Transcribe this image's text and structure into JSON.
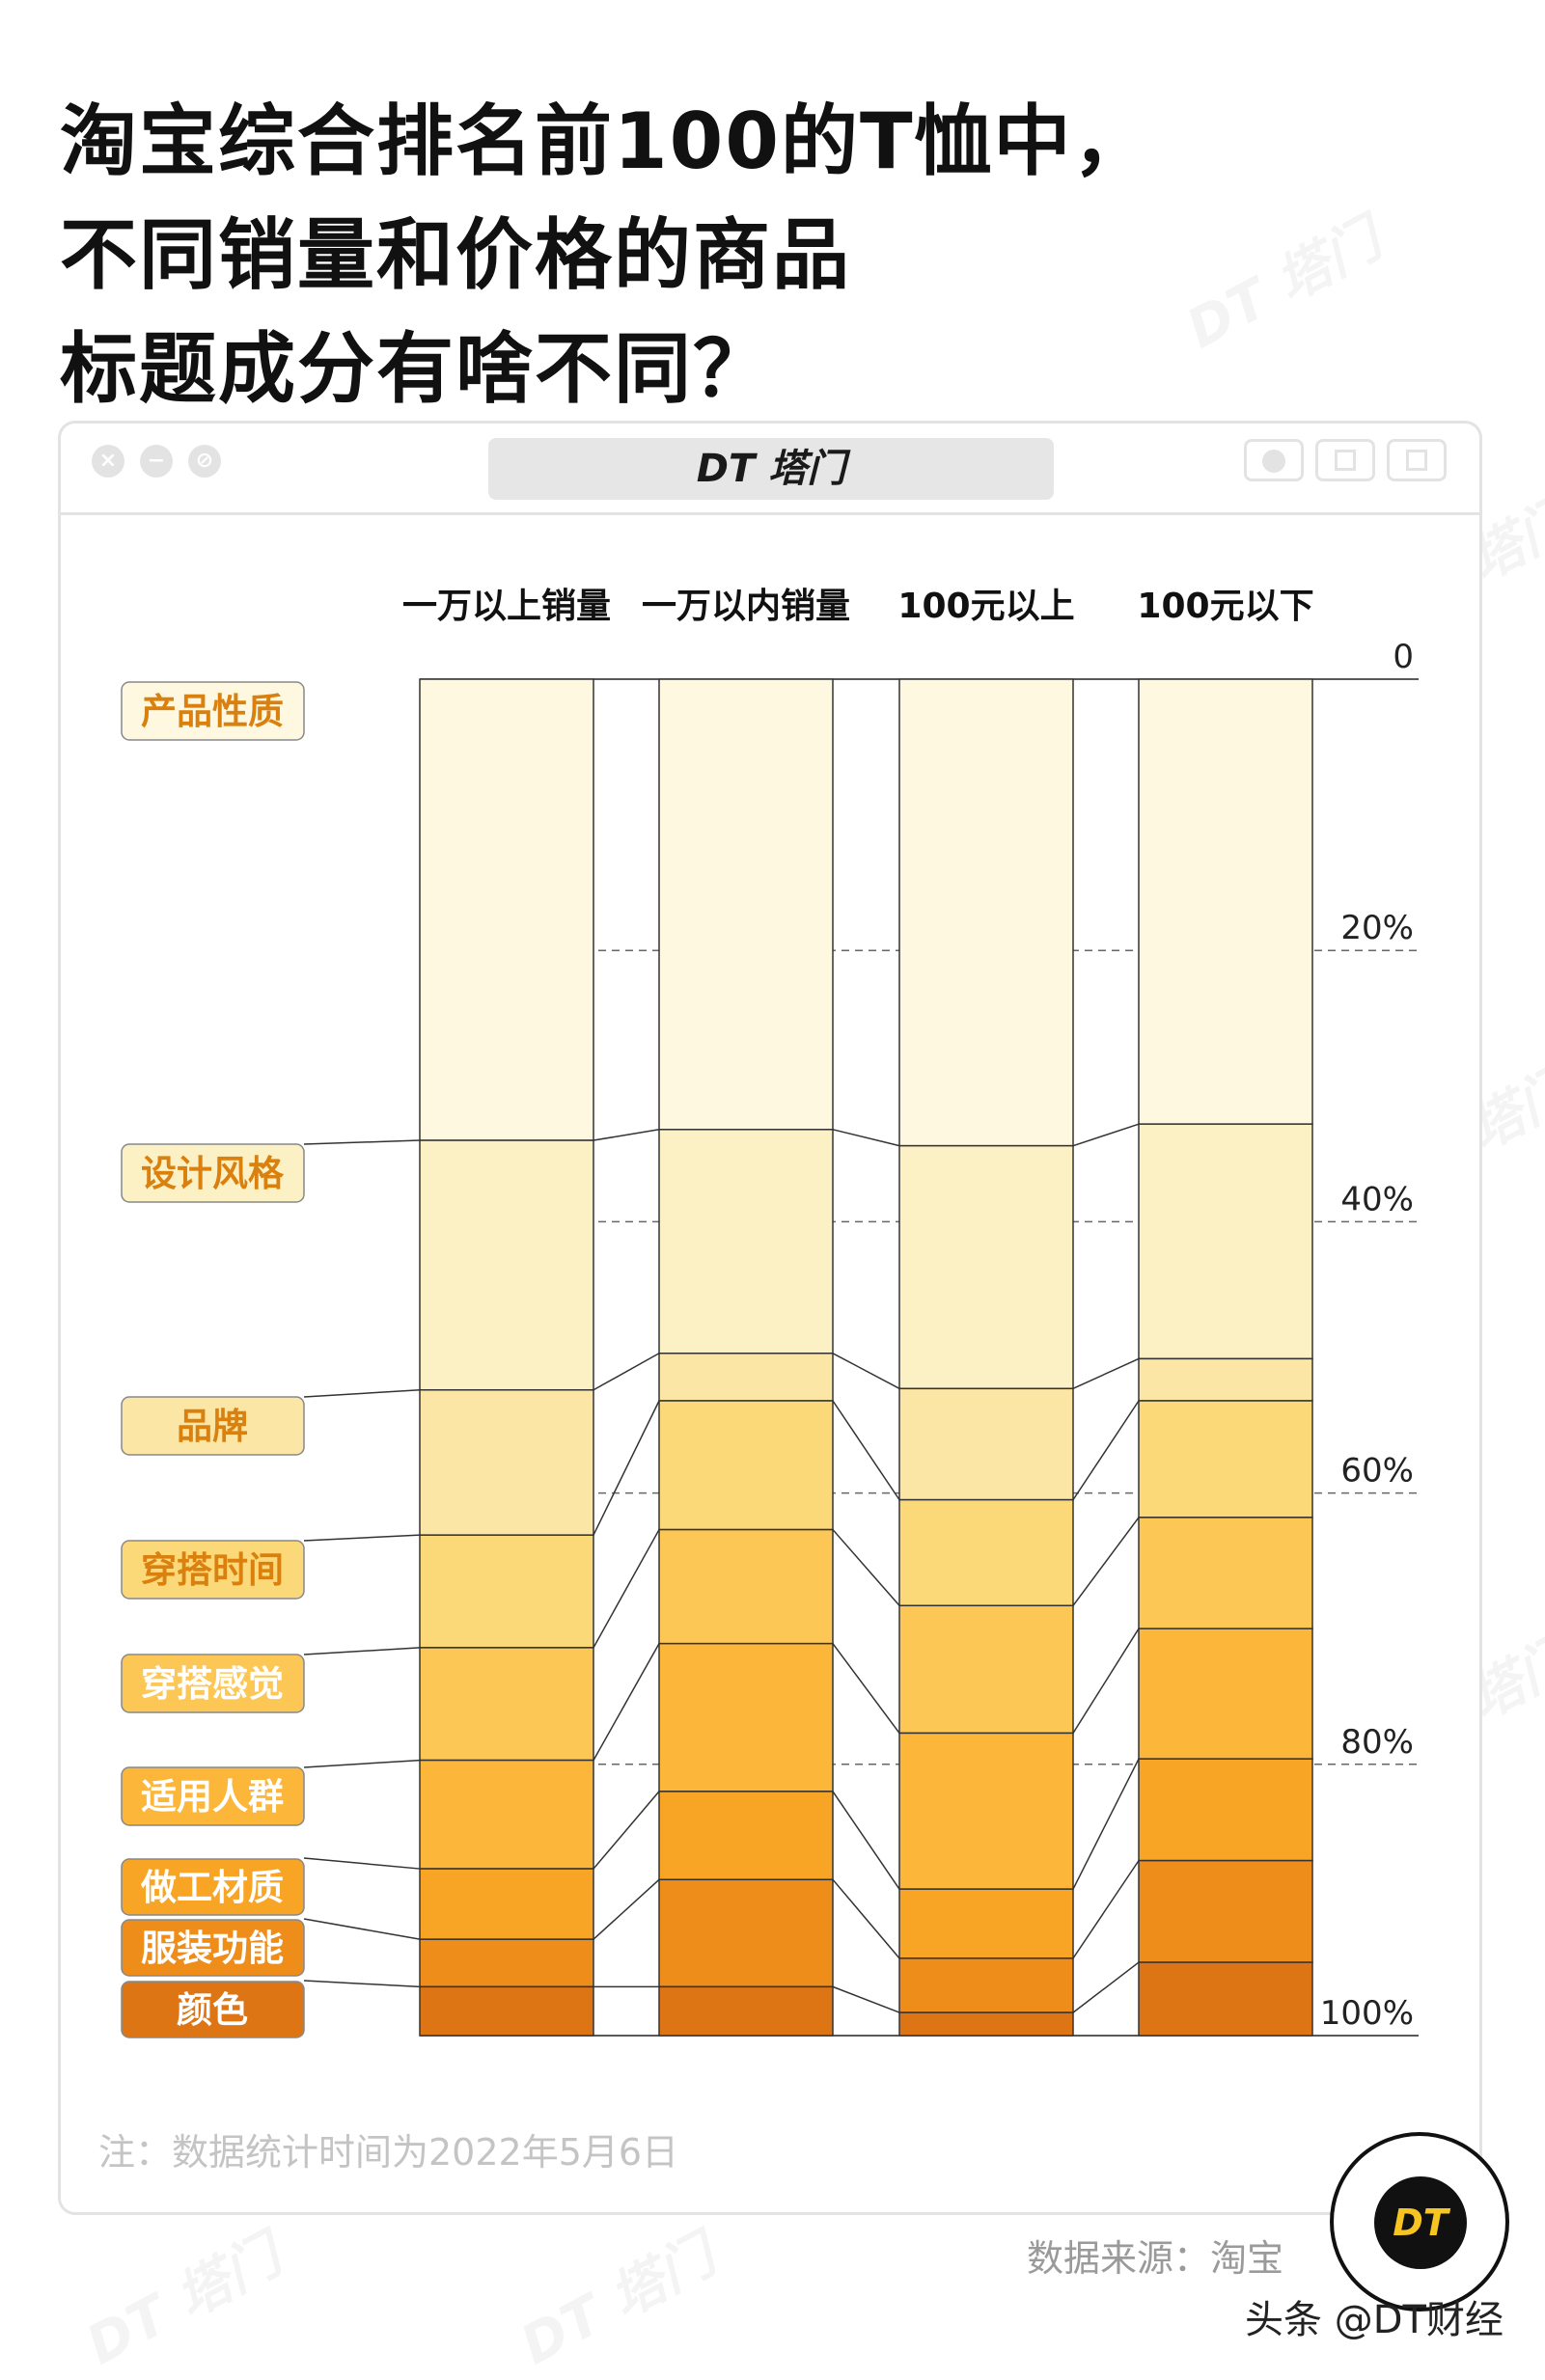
{
  "title_lines": [
    "淘宝综合排名前100的T恤中，",
    "不同销量和价格的商品",
    "标题成分有啥不同？"
  ],
  "brand": "DT 塔门",
  "watermark": "DT 塔门",
  "chart_data": {
    "type": "bar",
    "stacked": "percent",
    "categories": [
      "一万以上销量",
      "一万以内销量",
      "100元以上",
      "100元以下"
    ],
    "series": [
      {
        "name": "产品性质",
        "color": "#fdf8df",
        "values": [
          34.0,
          33.2,
          34.4,
          32.8
        ]
      },
      {
        "name": "设计风格",
        "color": "#fcf1c5",
        "values": [
          18.4,
          16.5,
          17.9,
          17.3
        ]
      },
      {
        "name": "品牌",
        "color": "#fce6a5",
        "values": [
          10.7,
          3.5,
          8.2,
          3.1
        ]
      },
      {
        "name": "穿搭时间",
        "color": "#fcd978",
        "values": [
          8.3,
          9.5,
          7.8,
          8.6
        ]
      },
      {
        "name": "穿搭感觉",
        "color": "#fcc755",
        "values": [
          8.3,
          8.4,
          9.4,
          8.2
        ]
      },
      {
        "name": "适用人群",
        "color": "#fcb639",
        "values": [
          8.0,
          10.9,
          11.5,
          9.6
        ]
      },
      {
        "name": "做工材质",
        "color": "#f8a425",
        "values": [
          5.2,
          6.5,
          5.1,
          7.5
        ]
      },
      {
        "name": "服装功能",
        "color": "#ee8d19",
        "values": [
          3.5,
          7.9,
          4.0,
          7.5
        ]
      },
      {
        "name": "颜色",
        "color": "#dd7514",
        "values": [
          3.6,
          3.6,
          1.7,
          5.4
        ]
      }
    ],
    "y_ticks": [
      "0",
      "20%",
      "40%",
      "60%",
      "80%",
      "100%"
    ],
    "ylim": [
      0,
      100
    ]
  },
  "note": "注：数据统计时间为2022年5月6日",
  "source": "数据来源：淘宝",
  "logo_text": "DT",
  "credit": "头条 @DT财经"
}
